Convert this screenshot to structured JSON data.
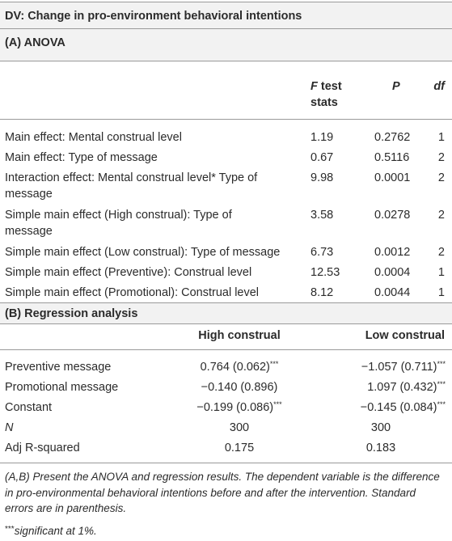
{
  "title": "DV: Change in pro-environment behavioral intentions",
  "anova": {
    "heading": "(A) ANOVA",
    "col_f": "F",
    "col_f_rest": " test",
    "col_f_line2": "stats",
    "col_p": "P",
    "col_df": "df",
    "rows": [
      {
        "effect": "Main effect: Mental construal level",
        "f": "1.19",
        "p": "0.2762",
        "df": "1"
      },
      {
        "effect": "Main effect: Type of message",
        "f": "0.67",
        "p": "0.5116",
        "df": "2"
      },
      {
        "effect_line1": "Interaction effect: Mental construal level* Type of",
        "effect_line2": "message",
        "f": "9.98",
        "p": "0.0001",
        "df": "2"
      },
      {
        "effect_line1": "Simple main effect (High construal): Type of",
        "effect_line2": "message",
        "f": "3.58",
        "p": "0.0278",
        "df": "2"
      },
      {
        "effect": "Simple main effect (Low construal): Type of message",
        "f": "6.73",
        "p": "0.0012",
        "df": "2"
      },
      {
        "effect": "Simple main effect (Preventive): Construal level",
        "f": "12.53",
        "p": "0.0004",
        "df": "1"
      },
      {
        "effect": "Simple main effect (Promotional): Construal level",
        "f": "8.12",
        "p": "0.0044",
        "df": "1"
      }
    ]
  },
  "regression": {
    "heading": "(B) Regression analysis",
    "col_high": "High construal",
    "col_low": "Low construal",
    "rows": [
      {
        "label": "Preventive message",
        "high": "0.764 (0.062)",
        "high_sig": "***",
        "low": "−1.057 (0.711)",
        "low_sig": "***"
      },
      {
        "label": "Promotional message",
        "high": "−0.140 (0.896)",
        "high_sig": "",
        "low": "1.097 (0.432)",
        "low_sig": "***"
      },
      {
        "label": "Constant",
        "high": "−0.199 (0.086)",
        "high_sig": "***",
        "low": "−0.145 (0.084)",
        "low_sig": "***"
      },
      {
        "label": "N",
        "high": "300",
        "high_sig": "",
        "low": "300",
        "low_sig": ""
      },
      {
        "label": "Adj R-squared",
        "high": "0.175",
        "high_sig": "",
        "low": "0.183",
        "low_sig": ""
      }
    ]
  },
  "footnote": {
    "line1": "(A,B) Present the ANOVA and regression results. The dependent variable is the difference",
    "line2": "in pro-environmental behavioral intentions before and after the intervention. Standard",
    "line3": "errors are in parenthesis.",
    "sig_mark": "***",
    "sig_text": "significant at 1%."
  }
}
